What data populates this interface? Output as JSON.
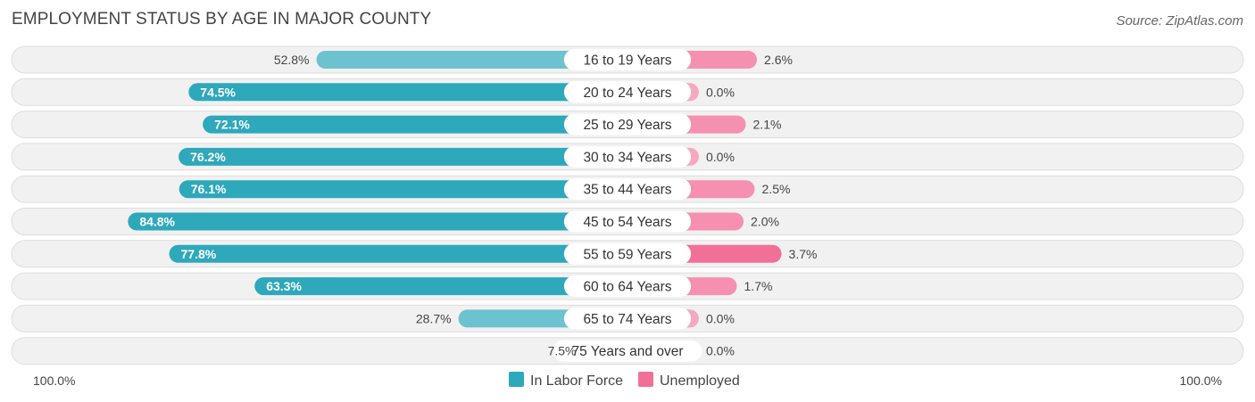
{
  "title": "EMPLOYMENT STATUS BY AGE IN MAJOR COUNTY",
  "source": "Source: ZipAtlas.com",
  "colors": {
    "labor_dark": "#2ea8bb",
    "labor_light": "#6cc2ce",
    "unemp_dark": "#f07098",
    "unemp_light": "#f7a8c1"
  },
  "chart_data": {
    "type": "bar",
    "orientation": "horizontal-diverging",
    "categories": [
      "16 to 19 Years",
      "20 to 24 Years",
      "25 to 29 Years",
      "30 to 34 Years",
      "35 to 44 Years",
      "45 to 54 Years",
      "55 to 59 Years",
      "60 to 64 Years",
      "65 to 74 Years",
      "75 Years and over"
    ],
    "series": [
      {
        "name": "In Labor Force",
        "values": [
          52.8,
          74.5,
          72.1,
          76.2,
          76.1,
          84.8,
          77.8,
          63.3,
          28.7,
          7.5
        ],
        "labels": [
          "52.8%",
          "74.5%",
          "72.1%",
          "76.2%",
          "76.1%",
          "84.8%",
          "77.8%",
          "63.3%",
          "28.7%",
          "7.5%"
        ]
      },
      {
        "name": "Unemployed",
        "values": [
          2.6,
          0.0,
          2.1,
          0.0,
          2.5,
          2.0,
          3.7,
          1.7,
          0.0,
          0.0
        ],
        "labels": [
          "2.6%",
          "0.0%",
          "2.1%",
          "0.0%",
          "2.5%",
          "2.0%",
          "3.7%",
          "1.7%",
          "0.0%",
          "0.0%"
        ]
      }
    ],
    "axis": {
      "left_label": "100.0%",
      "right_label": "100.0%",
      "left_max": 100,
      "right_max": 100
    },
    "legend": {
      "position": "bottom-center",
      "entries": [
        "In Labor Force",
        "Unemployed"
      ]
    },
    "grid": false
  }
}
